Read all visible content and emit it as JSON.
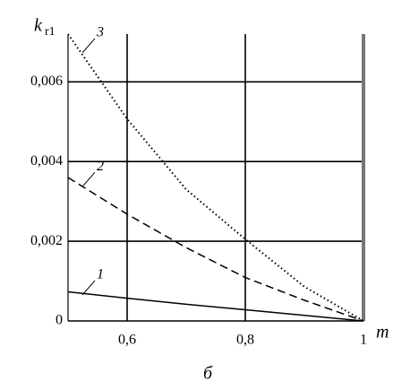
{
  "chart_data": {
    "type": "line",
    "y_label": "k",
    "y_label_sub": "r1",
    "x_label": "m",
    "caption": "б",
    "x": [
      0.5,
      0.6,
      0.7,
      0.8,
      0.9,
      1.0
    ],
    "series": [
      {
        "name": "1",
        "color": "#000000",
        "style": "solid",
        "values": [
          0.00073,
          0.00057,
          0.00042,
          0.00028,
          0.00014,
          0
        ]
      },
      {
        "name": "2",
        "color": "#000000",
        "style": "dashed",
        "values": [
          0.0036,
          0.00268,
          0.00184,
          0.00109,
          0.00052,
          0
        ]
      },
      {
        "name": "3",
        "color": "#000000",
        "style": "dotted",
        "values": [
          0.0072,
          0.00507,
          0.0033,
          0.00205,
          0.00086,
          0
        ]
      }
    ],
    "xlim": [
      0.5,
      1.0
    ],
    "ylim": [
      0,
      0.0072
    ],
    "xticks": [
      {
        "value": 0.6,
        "label": "0,6"
      },
      {
        "value": 0.8,
        "label": "0,8"
      },
      1
    ],
    "yticks": [
      0,
      {
        "value": 0.002,
        "label": "0,002"
      },
      {
        "value": 0.004,
        "label": "0,004"
      },
      {
        "value": 0.006,
        "label": "0,006"
      }
    ],
    "grid": true
  }
}
